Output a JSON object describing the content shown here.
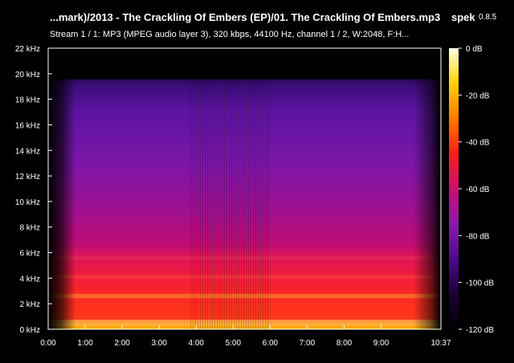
{
  "header": {
    "title": "...mark)/2013 - The Crackling Of Embers (EP)/01. The Crackling Of Embers.mp3",
    "app_name": "spek",
    "app_version": "0.8.5",
    "stream_info": "Stream 1 / 1: MP3 (MPEG audio layer 3), 320 kbps, 44100 Hz, channel 1 / 2, W:2048, F:H..."
  },
  "chart_data": {
    "type": "heatmap",
    "title": "",
    "xlabel": "",
    "ylabel": "",
    "x_tick_labels": [
      "0:00",
      "1:00",
      "2:00",
      "3:00",
      "4:00",
      "5:00",
      "6:00",
      "7:00",
      "8:00",
      "9:00",
      "10:37"
    ],
    "x_tick_seconds": [
      0,
      60,
      120,
      180,
      240,
      300,
      360,
      420,
      480,
      540,
      637
    ],
    "x_range_seconds": [
      0,
      637
    ],
    "y_tick_labels": [
      "0 kHz",
      "2 kHz",
      "4 kHz",
      "6 kHz",
      "8 kHz",
      "10 kHz",
      "12 kHz",
      "14 kHz",
      "16 kHz",
      "18 kHz",
      "20 kHz",
      "22 kHz"
    ],
    "y_tick_khz": [
      0,
      2,
      4,
      6,
      8,
      10,
      12,
      14,
      16,
      18,
      20,
      22
    ],
    "y_range_khz": [
      0,
      22
    ],
    "colorbar": {
      "tick_labels": [
        "0 dB",
        "-20 dB",
        "-40 dB",
        "-60 dB",
        "-80 dB",
        "-100 dB",
        "-120 dB"
      ],
      "tick_db": [
        0,
        -20,
        -40,
        -60,
        -80,
        -100,
        -120
      ],
      "range_db": [
        -120,
        0
      ],
      "colors": [
        "#000000",
        "#1a0033",
        "#4b0a8c",
        "#8a1aaa",
        "#c8106e",
        "#ff1c1c",
        "#ff7a00",
        "#ffd200",
        "#ffffe8"
      ]
    },
    "frequency_cutoff_khz": 19.6,
    "grid": false,
    "legend": "right"
  },
  "colors": {
    "background": "#000000",
    "text": "#ffffff",
    "axis": "#ffffff"
  }
}
